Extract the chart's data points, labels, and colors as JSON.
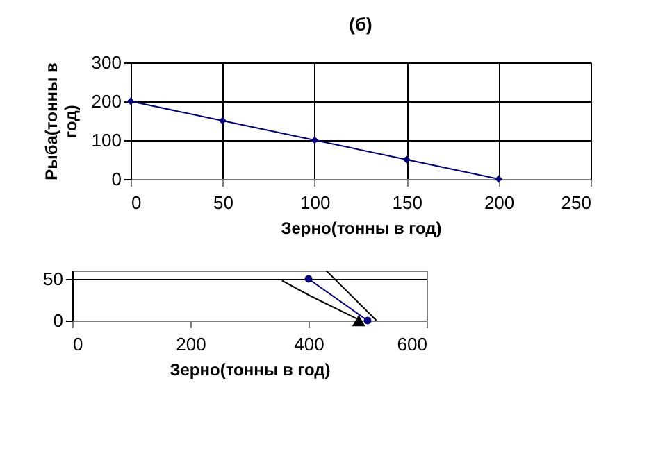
{
  "chart_data": [
    {
      "type": "line",
      "title": "(б)",
      "xlabel": "Зерно(тонны в год)",
      "ylabel": "Рыба(тонны в год)",
      "x": [
        0,
        50,
        100,
        150,
        200
      ],
      "series": [
        {
          "color": "#000080",
          "values": [
            200,
            150,
            100,
            50,
            0
          ],
          "marker": "diamond"
        }
      ],
      "xlim": [
        0,
        250
      ],
      "xticks": [
        0,
        50,
        100,
        150,
        200,
        250
      ],
      "ylim": [
        0,
        300
      ],
      "yticks": [
        0,
        100,
        200,
        300
      ],
      "grid": true
    },
    {
      "type": "line",
      "xlabel": "Зерно(тонны в год)",
      "series": [
        {
          "color": "#000080",
          "x": [
            400,
            500
          ],
          "values": [
            50,
            0
          ],
          "marker": "circle"
        },
        {
          "color": "#000000",
          "x": [
            355,
            402,
            488
          ],
          "values": [
            48,
            30,
            0
          ],
          "marker": "none"
        },
        {
          "color": "#000000",
          "x": [
            430,
            515
          ],
          "values": [
            60,
            0
          ],
          "marker": "none"
        },
        {
          "type": "scatter",
          "color": "#000000",
          "x": [
            485
          ],
          "values": [
            0
          ],
          "marker": "triangle"
        }
      ],
      "xlim": [
        0,
        600
      ],
      "xticks": [
        0,
        200,
        400,
        600
      ],
      "ylim": [
        0,
        60
      ],
      "yticks": [
        0,
        50
      ],
      "grid": "y"
    }
  ]
}
